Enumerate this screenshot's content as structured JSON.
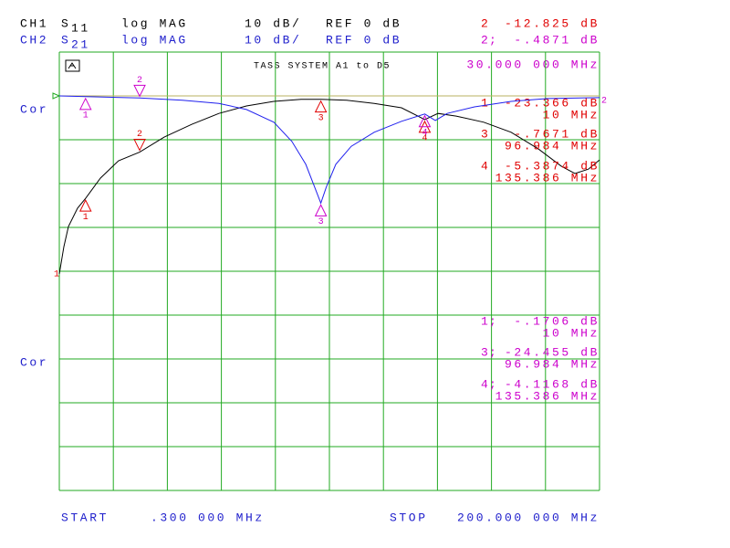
{
  "chart_data": {
    "type": "line",
    "title": "TASS SYSTEM A1 to D5",
    "xlim": [
      0.3,
      200
    ],
    "ylim": [
      -90,
      10
    ],
    "ref_level": 0,
    "ref_color": "#b8b060",
    "grid_color": "#22aa22",
    "start_label": "START",
    "start_text": ".300 000 MHz",
    "stop_label": "STOP",
    "stop_text": "200.000 000 MHz",
    "active_marker_x_label": "30.000 000 MHz",
    "series": [
      {
        "name": "CH1",
        "param": "S",
        "param_sub": "11",
        "format": "log MAG",
        "scale": "10 dB/",
        "ref": "REF 0 dB",
        "color": "#000000",
        "header_color": "#000000",
        "readout_color": "#e00000",
        "status": "Cor",
        "end_label": "1",
        "separator": " ",
        "x": [
          0.3,
          1.99,
          3.67,
          7.05,
          10,
          15.5,
          22.2,
          30,
          39.1,
          49.2,
          59.3,
          69.5,
          79.6,
          89.7,
          96.984,
          106.6,
          116.7,
          126.8,
          135.386,
          140.3,
          147,
          157.2,
          167.3,
          177.4,
          185.8,
          190.9,
          195.9,
          200
        ],
        "values": [
          -40.6,
          -34.4,
          -29.8,
          -25.6,
          -23.366,
          -18.75,
          -14.8,
          -12.825,
          -9.4,
          -6.5,
          -4.0,
          -2.3,
          -1.25,
          -0.8,
          -0.7671,
          -1.0,
          -1.7,
          -2.7,
          -5.3874,
          -4.0,
          -4.6,
          -6.0,
          -8.3,
          -12.1,
          -16.0,
          -17.7,
          -16.7,
          -14.6
        ],
        "markers": [
          {
            "label": "1",
            "x": 10,
            "value": -23.366,
            "value_label": "-23.366 dB",
            "x_label": "10 MHz"
          },
          {
            "label": "2",
            "x": 30,
            "value": -12.825,
            "value_label": "-12.825 dB",
            "active": true
          },
          {
            "label": "3",
            "x": 96.984,
            "value": -0.7671,
            "value_label": "-.7671 dB",
            "x_label": "96.984 MHz"
          },
          {
            "label": "4",
            "x": 135.386,
            "value": -5.3874,
            "value_label": "-5.3874 dB",
            "x_label": "135.386 MHz"
          }
        ]
      },
      {
        "name": "CH2",
        "param": "S",
        "param_sub": "21",
        "format": "log MAG",
        "scale": "10 dB/",
        "ref": "REF 0 dB",
        "color": "#2020ee",
        "header_color": "#2020cc",
        "readout_color": "#cc00cc",
        "status": "Cor",
        "end_label": "2",
        "separator": ";",
        "x": [
          0.3,
          10,
          30,
          45.8,
          59.3,
          69.5,
          79.6,
          86.3,
          91.4,
          94.7,
          96.984,
          99.0,
          102.5,
          108.2,
          116.7,
          126.8,
          135.386,
          139.3,
          143.7,
          153.8,
          167.3,
          180.8,
          200
        ],
        "values": [
          0,
          -0.1706,
          -0.4871,
          -1.0,
          -1.7,
          -3.1,
          -6.0,
          -10.4,
          -15.6,
          -20.8,
          -24.455,
          -20.8,
          -15.6,
          -11.5,
          -8.3,
          -5.8,
          -4.1168,
          -5.6,
          -4.0,
          -2.5,
          -1.25,
          -0.6,
          -0.4
        ],
        "markers": [
          {
            "label": "1",
            "x": 10,
            "value": -0.1706,
            "value_label": "-.1706 dB",
            "x_label": "10 MHz"
          },
          {
            "label": "2",
            "x": 30,
            "value": -0.4871,
            "value_label": "-.4871 dB",
            "active": true
          },
          {
            "label": "3",
            "x": 96.984,
            "value": -24.455,
            "value_label": "-24.455 dB",
            "x_label": "96.984 MHz"
          },
          {
            "label": "4",
            "x": 135.386,
            "value": -4.1168,
            "value_label": "-4.1168 dB",
            "x_label": "135.386 MHz"
          }
        ]
      }
    ]
  }
}
